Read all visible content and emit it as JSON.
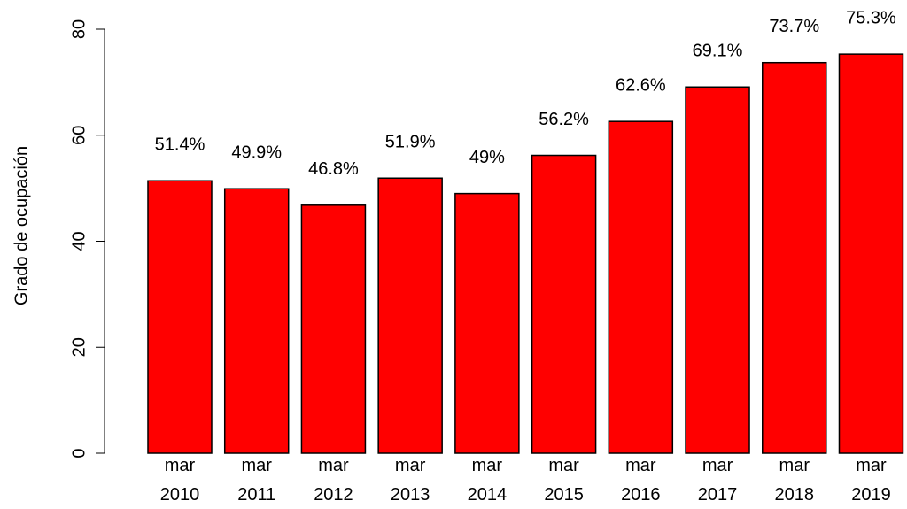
{
  "chart_data": {
    "type": "bar",
    "ylabel": "Grado de ocupación",
    "categories": [
      [
        "mar",
        "2010"
      ],
      [
        "mar",
        "2011"
      ],
      [
        "mar",
        "2012"
      ],
      [
        "mar",
        "2013"
      ],
      [
        "mar",
        "2014"
      ],
      [
        "mar",
        "2015"
      ],
      [
        "mar",
        "2016"
      ],
      [
        "mar",
        "2017"
      ],
      [
        "mar",
        "2018"
      ],
      [
        "mar",
        "2019"
      ]
    ],
    "values": [
      51.4,
      49.9,
      46.8,
      51.9,
      49,
      56.2,
      62.6,
      69.1,
      73.7,
      75.3
    ],
    "value_labels": [
      "51.4%",
      "49.9%",
      "46.8%",
      "51.9%",
      "49%",
      "56.2%",
      "62.6%",
      "69.1%",
      "73.7%",
      "75.3%"
    ],
    "color": "#ff0000",
    "ylim": [
      0,
      80
    ],
    "yticks": [
      0,
      20,
      40,
      60,
      80
    ],
    "grid": false
  }
}
